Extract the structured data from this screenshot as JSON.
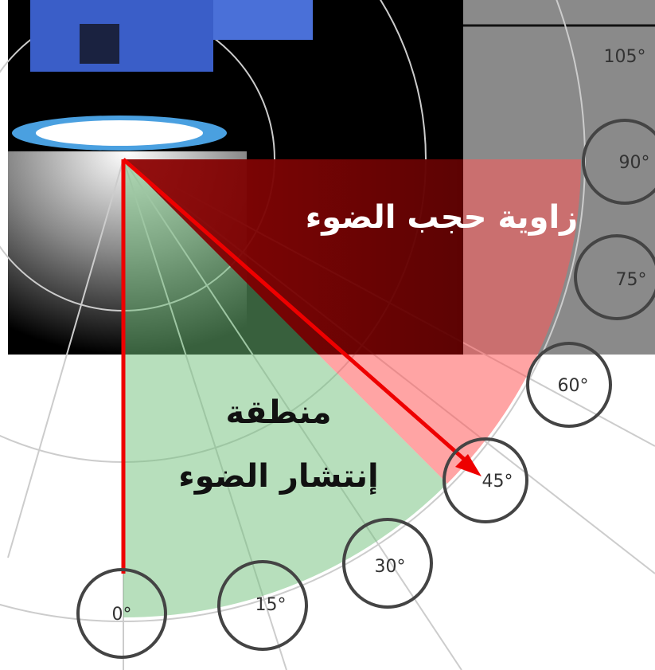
{
  "angles": [
    "0°",
    "15°",
    "30°",
    "45°",
    "60°",
    "75°",
    "90°",
    "105°"
  ],
  "cutoff_label": "زاوية حجب الضوء",
  "spread_label": [
    "منطقة",
    "إنتشار الضوء"
  ]
}
